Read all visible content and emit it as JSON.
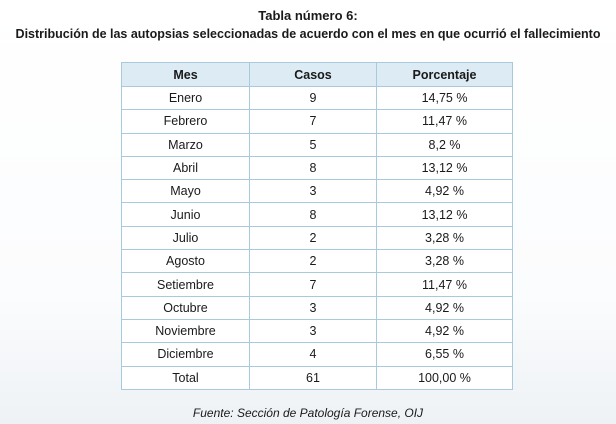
{
  "header": {
    "title": "Tabla número 6:",
    "subtitle": "Distribución de las autopsias seleccionadas de acuerdo con el mes en que ocurrió el fallecimiento"
  },
  "table": {
    "columns": [
      "Mes",
      "Casos",
      "Porcentaje"
    ],
    "rows": [
      {
        "mes": "Enero",
        "casos": "9",
        "porcentaje": "14,75 %"
      },
      {
        "mes": "Febrero",
        "casos": "7",
        "porcentaje": "11,47 %"
      },
      {
        "mes": "Marzo",
        "casos": "5",
        "porcentaje": "8,2 %"
      },
      {
        "mes": "Abril",
        "casos": "8",
        "porcentaje": "13,12 %"
      },
      {
        "mes": "Mayo",
        "casos": "3",
        "porcentaje": "4,92 %"
      },
      {
        "mes": "Junio",
        "casos": "8",
        "porcentaje": "13,12 %"
      },
      {
        "mes": "Julio",
        "casos": "2",
        "porcentaje": "3,28 %"
      },
      {
        "mes": "Agosto",
        "casos": "2",
        "porcentaje": "3,28 %"
      },
      {
        "mes": "Setiembre",
        "casos": "7",
        "porcentaje": "11,47 %"
      },
      {
        "mes": "Octubre",
        "casos": "3",
        "porcentaje": "4,92 %"
      },
      {
        "mes": "Noviembre",
        "casos": "3",
        "porcentaje": "4,92 %"
      },
      {
        "mes": "Diciembre",
        "casos": "4",
        "porcentaje": "6,55 %"
      }
    ],
    "total": {
      "mes": "Total",
      "casos": "61",
      "porcentaje": "100,00 %"
    }
  },
  "footer": {
    "source": "Fuente: Sección de Patología Forense, OIJ"
  },
  "colors": {
    "header_bg": "#dcebf4",
    "border": "#a9c9dc"
  }
}
